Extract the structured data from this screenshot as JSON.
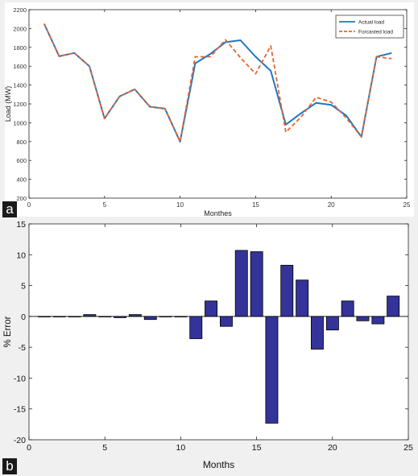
{
  "panel_labels": {
    "a": "a",
    "b": "b"
  },
  "colors": {
    "actual_line": "#1f77c4",
    "forecast_line": "#e8642c",
    "bar_fill": "#333399",
    "bar_edge": "#000000",
    "axis": "#262626"
  },
  "chart_data": [
    {
      "type": "line",
      "xlabel": "Monthes",
      "ylabel": "Load (MW)",
      "xlim": [
        0,
        25
      ],
      "ylim": [
        200,
        2200
      ],
      "xticks": [
        0,
        5,
        10,
        15,
        20,
        25
      ],
      "yticks": [
        200,
        400,
        600,
        800,
        1000,
        1200,
        1400,
        1600,
        1800,
        2000,
        2200
      ],
      "legend_position": "top-right",
      "grid": false,
      "x": [
        1,
        2,
        3,
        4,
        5,
        6,
        7,
        8,
        9,
        10,
        11,
        12,
        13,
        14,
        15,
        16,
        17,
        18,
        19,
        20,
        21,
        22,
        23,
        24
      ],
      "series": [
        {
          "name": "Actual load",
          "style": "solid",
          "values": [
            2050,
            1705,
            1740,
            1600,
            1045,
            1280,
            1355,
            1170,
            1150,
            800,
            1630,
            1730,
            1855,
            1875,
            1700,
            1550,
            980,
            1100,
            1210,
            1190,
            1075,
            850,
            1700,
            1740
          ]
        },
        {
          "name": "Forcasted load",
          "style": "dashed",
          "values": [
            2050,
            1705,
            1740,
            1600,
            1045,
            1280,
            1355,
            1170,
            1150,
            800,
            1700,
            1700,
            1880,
            1690,
            1520,
            1815,
            900,
            1060,
            1270,
            1220,
            1050,
            850,
            1700,
            1680
          ]
        }
      ]
    },
    {
      "type": "bar",
      "xlabel": "Months",
      "ylabel": "% Error",
      "xlim": [
        0,
        25
      ],
      "ylim": [
        -20,
        15
      ],
      "xticks": [
        0,
        5,
        10,
        15,
        20,
        25
      ],
      "yticks": [
        -20,
        -15,
        -10,
        -5,
        0,
        5,
        10,
        15
      ],
      "grid": false,
      "categories": [
        1,
        2,
        3,
        4,
        5,
        6,
        7,
        8,
        9,
        10,
        11,
        12,
        13,
        14,
        15,
        16,
        17,
        18,
        19,
        20,
        21,
        22,
        23,
        24
      ],
      "values": [
        0,
        0,
        0,
        0.3,
        0,
        -0.2,
        0.3,
        -0.5,
        0,
        0,
        -3.6,
        2.5,
        -1.6,
        10.7,
        10.5,
        -17.3,
        8.3,
        5.9,
        -5.3,
        -2.2,
        2.5,
        -0.7,
        -1.2,
        3.3
      ]
    }
  ]
}
